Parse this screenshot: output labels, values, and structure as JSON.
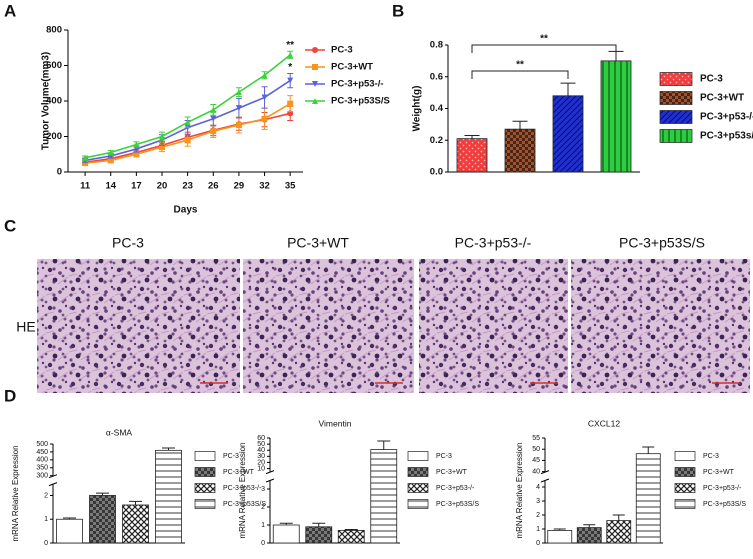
{
  "panel_labels": [
    "A",
    "B",
    "C",
    "D"
  ],
  "histology": {
    "row_label": "HE",
    "columns": [
      "PC-3",
      "PC-3+WT",
      "PC-3+p53-/-",
      "PC-3+p53S/S"
    ]
  },
  "chart_data": [
    {
      "type": "line",
      "y_label": "Tumor Volume(mm3)",
      "x_label": "Days",
      "x": [
        11,
        14,
        17,
        20,
        23,
        26,
        29,
        32,
        35
      ],
      "xlim": [
        9,
        36.5
      ],
      "xticks": [
        11,
        14,
        17,
        20,
        23,
        26,
        29,
        32,
        35
      ],
      "ylim": [
        0,
        800
      ],
      "yticks": [
        0,
        200,
        400,
        600,
        800
      ],
      "series": [
        {
          "name": "PC-3",
          "color": "#f0443c",
          "marker": "circle",
          "values": [
            55,
            75,
            110,
            150,
            195,
            235,
            270,
            295,
            330
          ],
          "errors": [
            8,
            10,
            15,
            20,
            30,
            30,
            35,
            40,
            40
          ]
        },
        {
          "name": "PC-3+WT",
          "color": "#f7941d",
          "marker": "square",
          "values": [
            50,
            65,
            100,
            140,
            180,
            230,
            265,
            300,
            385
          ],
          "errors": [
            8,
            10,
            15,
            25,
            35,
            35,
            45,
            60,
            45
          ]
        },
        {
          "name": "PC-3+p53-/-",
          "color": "#5b63d6",
          "marker": "tri-down",
          "values": [
            65,
            90,
            130,
            180,
            250,
            300,
            360,
            420,
            515
          ],
          "errors": [
            10,
            12,
            18,
            30,
            40,
            40,
            55,
            60,
            40
          ]
        },
        {
          "name": "PC-3+p53S/S",
          "color": "#3cd23c",
          "marker": "tri-up",
          "values": [
            80,
            110,
            155,
            200,
            280,
            350,
            450,
            545,
            660
          ],
          "errors": [
            10,
            12,
            15,
            25,
            30,
            30,
            25,
            20,
            20
          ]
        }
      ],
      "annotations": [
        "**",
        "*"
      ]
    },
    {
      "type": "bar",
      "y_label": "Weight(g)",
      "categories": [
        "PC-3",
        "PC-3+WT",
        "PC-3+p53-/-",
        "PC-3+p53s/s"
      ],
      "values": [
        0.21,
        0.27,
        0.48,
        0.7
      ],
      "errors": [
        0.02,
        0.05,
        0.08,
        0.06
      ],
      "colors": [
        "#f03c3c",
        "#a0522d",
        "#1f2fd6",
        "#2ecc40"
      ],
      "patterns": [
        "dots",
        "checker",
        "diagonal",
        "vertical"
      ],
      "ylim": [
        0,
        0.8
      ],
      "yticks": [
        {
          "value": 0,
          "label": "0.0"
        },
        0.2,
        0.4,
        0.6,
        0.8
      ],
      "annotations": [
        "**",
        "**"
      ]
    },
    {
      "type": "bar",
      "title": "α-SMA",
      "y_label": "mRNA Relative Expression",
      "categories": [
        "PC-3",
        "PC-3+WT",
        "PC-3+p53-/-",
        "PC-3+p53S/S"
      ],
      "values": [
        1.0,
        2.0,
        1.6,
        460
      ],
      "errors": [
        0.05,
        0.1,
        0.15,
        15
      ],
      "colors": [
        "#ffffff",
        "#7a7a7a",
        "#ffffff",
        "#ffffff"
      ],
      "patterns": [
        "none",
        "checker",
        "diamond",
        "hstripe"
      ],
      "segments": [
        {
          "ylim": [
            0,
            2.5
          ],
          "yticks": [
            0,
            1,
            2
          ]
        },
        {
          "ylim": [
            300,
            500
          ],
          "yticks": [
            300,
            350,
            400,
            450,
            500
          ]
        }
      ]
    },
    {
      "type": "bar",
      "title": "Vimentin",
      "y_label": "mRNA Relative Expression",
      "categories": [
        "PC-3",
        "PC-3+WT",
        "PC-3+p53-/-",
        "PC-3+p53S/S"
      ],
      "values": [
        1.0,
        0.9,
        0.7,
        41
      ],
      "errors": [
        0.1,
        0.2,
        0.05,
        14
      ],
      "colors": [
        "#ffffff",
        "#7a7a7a",
        "#ffffff",
        "#ffffff"
      ],
      "patterns": [
        "none",
        "checker",
        "diamond",
        "hstripe"
      ],
      "segments": [
        {
          "ylim": [
            0,
            3.5
          ],
          "yticks": [
            0,
            1,
            2,
            3
          ]
        },
        {
          "ylim": [
            5,
            60
          ],
          "yticks": [
            10,
            20,
            30,
            40,
            50,
            60
          ]
        }
      ]
    },
    {
      "type": "bar",
      "title": "CXCL12",
      "y_label": "mRNA Relative Expression",
      "categories": [
        "PC-3",
        "PC-3+WT",
        "PC-3+p53-/-",
        "PC-3+p53S/S"
      ],
      "values": [
        0.9,
        1.1,
        1.6,
        48
      ],
      "errors": [
        0.1,
        0.2,
        0.4,
        3
      ],
      "colors": [
        "#ffffff",
        "#7a7a7a",
        "#ffffff",
        "#ffffff"
      ],
      "patterns": [
        "none",
        "checker",
        "diamond",
        "hstripe"
      ],
      "segments": [
        {
          "ylim": [
            0,
            4.5
          ],
          "yticks": [
            0,
            1,
            2,
            3,
            4
          ]
        },
        {
          "ylim": [
            40,
            55
          ],
          "yticks": [
            40,
            45,
            50,
            55
          ]
        }
      ]
    }
  ]
}
